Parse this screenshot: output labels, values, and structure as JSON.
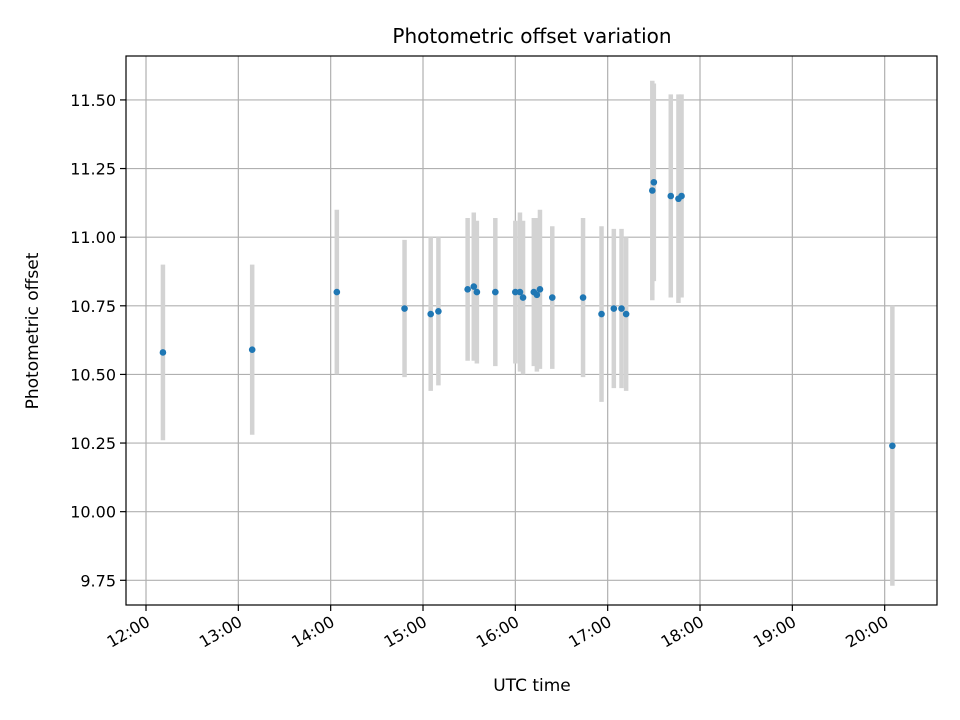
{
  "chart_data": {
    "type": "scatter",
    "title": "Photometric offset variation",
    "xlabel": "UTC time",
    "ylabel": "Photometric offset",
    "x_ticks": [
      "12:00",
      "13:00",
      "14:00",
      "15:00",
      "16:00",
      "17:00",
      "18:00",
      "19:00",
      "20:00"
    ],
    "y_ticks": [
      "9.75",
      "10.00",
      "10.25",
      "10.50",
      "10.75",
      "11.00",
      "11.25",
      "11.50"
    ],
    "xlim": [
      "11:47",
      "20:34"
    ],
    "ylim": [
      9.66,
      11.66
    ],
    "grid": true,
    "colors": {
      "points": "#1f77b4",
      "errorbars": "#d3d3d3",
      "grid": "#b0b0b0"
    },
    "points": [
      {
        "x": "12:11",
        "y": 10.58,
        "yerr": 0.32
      },
      {
        "x": "13:09",
        "y": 10.59,
        "yerr": 0.31
      },
      {
        "x": "14:04",
        "y": 10.8,
        "yerr": 0.3
      },
      {
        "x": "14:48",
        "y": 10.74,
        "yerr": 0.25
      },
      {
        "x": "15:05",
        "y": 10.72,
        "yerr": 0.28
      },
      {
        "x": "15:10",
        "y": 10.73,
        "yerr": 0.27
      },
      {
        "x": "15:29",
        "y": 10.81,
        "yerr": 0.26
      },
      {
        "x": "15:33",
        "y": 10.82,
        "yerr": 0.27
      },
      {
        "x": "15:35",
        "y": 10.8,
        "yerr": 0.26
      },
      {
        "x": "15:47",
        "y": 10.8,
        "yerr": 0.27
      },
      {
        "x": "16:00",
        "y": 10.8,
        "yerr": 0.26
      },
      {
        "x": "16:03",
        "y": 10.8,
        "yerr": 0.29
      },
      {
        "x": "16:05",
        "y": 10.78,
        "yerr": 0.28
      },
      {
        "x": "16:12",
        "y": 10.8,
        "yerr": 0.27
      },
      {
        "x": "16:14",
        "y": 10.79,
        "yerr": 0.28
      },
      {
        "x": "16:16",
        "y": 10.81,
        "yerr": 0.29
      },
      {
        "x": "16:24",
        "y": 10.78,
        "yerr": 0.26
      },
      {
        "x": "16:44",
        "y": 10.78,
        "yerr": 0.29
      },
      {
        "x": "16:56",
        "y": 10.72,
        "yerr": 0.32
      },
      {
        "x": "17:04",
        "y": 10.74,
        "yerr": 0.29
      },
      {
        "x": "17:09",
        "y": 10.74,
        "yerr": 0.29
      },
      {
        "x": "17:12",
        "y": 10.72,
        "yerr": 0.28
      },
      {
        "x": "17:29",
        "y": 11.17,
        "yerr": 0.4
      },
      {
        "x": "17:30",
        "y": 11.2,
        "yerr": 0.36
      },
      {
        "x": "17:41",
        "y": 11.15,
        "yerr": 0.37
      },
      {
        "x": "17:46",
        "y": 11.14,
        "yerr": 0.38
      },
      {
        "x": "17:48",
        "y": 11.15,
        "yerr": 0.37
      },
      {
        "x": "20:05",
        "y": 10.24,
        "yerr": 0.51
      }
    ]
  }
}
